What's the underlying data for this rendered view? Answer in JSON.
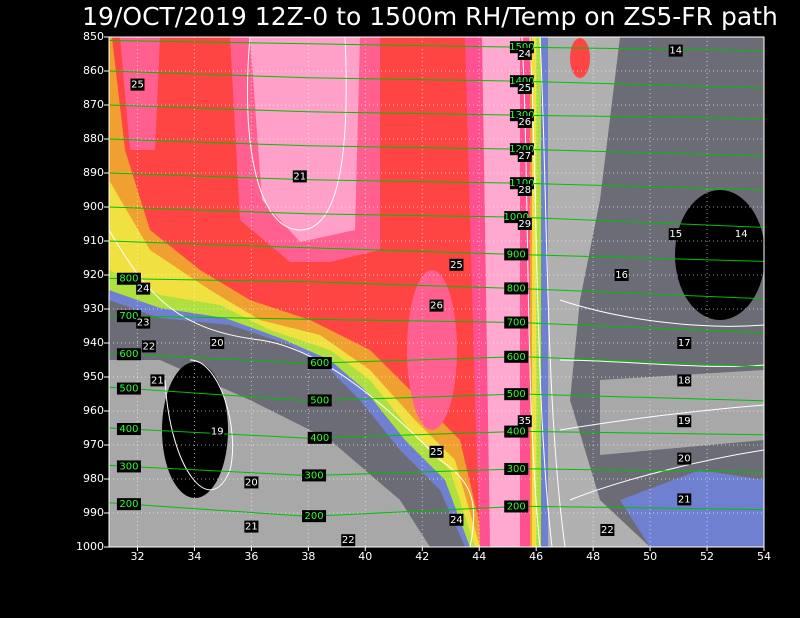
{
  "chart_data": {
    "type": "contour",
    "title": "19/OCT/2019 12Z-0 to 1500m RH/Temp on ZS5-FR path",
    "xlim": [
      31,
      54
    ],
    "ylim": [
      1000,
      850
    ],
    "xticks": [
      32,
      34,
      36,
      38,
      40,
      42,
      44,
      46,
      48,
      50,
      52,
      54
    ],
    "yticks": [
      850,
      860,
      870,
      880,
      890,
      900,
      910,
      920,
      930,
      940,
      950,
      960,
      970,
      980,
      990,
      1000
    ],
    "grid": true,
    "height_color": "#00c000",
    "height_contours": {
      "x": [
        31,
        38,
        45.5,
        54
      ],
      "levels": [
        {
          "level": 1500,
          "values": [
            851,
            852,
            853,
            854
          ],
          "label_x": [
            45.5
          ]
        },
        {
          "level": 1400,
          "values": [
            860,
            862,
            863,
            865
          ],
          "label_x": [
            45.5
          ]
        },
        {
          "level": 1300,
          "values": [
            870,
            872,
            873,
            874
          ],
          "label_x": [
            45.5
          ]
        },
        {
          "level": 1200,
          "values": [
            880,
            882,
            883,
            885
          ],
          "label_x": [
            45.5
          ]
        },
        {
          "level": 1100,
          "values": [
            890,
            892,
            893,
            895
          ],
          "label_x": [
            45.5
          ]
        },
        {
          "level": 1000,
          "values": [
            900,
            902,
            903,
            906
          ],
          "label_x": [
            45.3
          ]
        },
        {
          "level": 900,
          "values": [
            910,
            912,
            914,
            916
          ],
          "label_x": [
            45.3
          ]
        },
        {
          "level": 800,
          "values": [
            921,
            922,
            924,
            927
          ],
          "label_x": [
            31.7,
            45.3
          ]
        },
        {
          "level": 700,
          "values": [
            932,
            933,
            934,
            937
          ],
          "label_x": [
            31.7,
            45.3
          ]
        },
        {
          "level": 600,
          "values": [
            943,
            946,
            944,
            947
          ],
          "label_x": [
            31.7,
            38.4,
            45.3
          ]
        },
        {
          "level": 500,
          "values": [
            953,
            957,
            955,
            957
          ],
          "label_x": [
            31.7,
            38.4,
            45.3
          ]
        },
        {
          "level": 400,
          "values": [
            965,
            968,
            966,
            967
          ],
          "label_x": [
            31.7,
            38.4,
            45.3
          ]
        },
        {
          "level": 300,
          "values": [
            976,
            979,
            977,
            978
          ],
          "label_x": [
            31.7,
            38.2,
            45.3
          ]
        },
        {
          "level": 200,
          "values": [
            987,
            991,
            988,
            989
          ],
          "label_x": [
            31.7,
            38.2,
            45.3
          ]
        }
      ]
    },
    "temp_labels": [
      {
        "value": 25,
        "x": 32.0,
        "y": 864
      },
      {
        "value": 21,
        "x": 37.7,
        "y": 891
      },
      {
        "value": 14,
        "x": 50.9,
        "y": 854
      },
      {
        "value": 15,
        "x": 50.9,
        "y": 908
      },
      {
        "value": 14,
        "x": 53.2,
        "y": 908
      },
      {
        "value": 16,
        "x": 49.0,
        "y": 920
      },
      {
        "value": 25,
        "x": 43.2,
        "y": 917
      },
      {
        "value": 26,
        "x": 42.5,
        "y": 929
      },
      {
        "value": 24,
        "x": 32.2,
        "y": 924
      },
      {
        "value": 23,
        "x": 32.2,
        "y": 934
      },
      {
        "value": 22,
        "x": 32.4,
        "y": 941
      },
      {
        "value": 20,
        "x": 34.8,
        "y": 940
      },
      {
        "value": 21,
        "x": 32.7,
        "y": 951
      },
      {
        "value": 19,
        "x": 34.8,
        "y": 966
      },
      {
        "value": 20,
        "x": 36.0,
        "y": 981
      },
      {
        "value": 21,
        "x": 36.0,
        "y": 994
      },
      {
        "value": 22,
        "x": 39.4,
        "y": 998
      },
      {
        "value": 24,
        "x": 43.2,
        "y": 992
      },
      {
        "value": 25,
        "x": 42.5,
        "y": 972
      },
      {
        "value": 17,
        "x": 51.2,
        "y": 940
      },
      {
        "value": 18,
        "x": 51.2,
        "y": 951
      },
      {
        "value": 19,
        "x": 51.2,
        "y": 963
      },
      {
        "value": 20,
        "x": 51.2,
        "y": 974
      },
      {
        "value": 21,
        "x": 51.2,
        "y": 986
      },
      {
        "value": 22,
        "x": 48.5,
        "y": 995
      },
      {
        "value": 24,
        "x": 45.6,
        "y": 855
      },
      {
        "value": 25,
        "x": 45.6,
        "y": 865
      },
      {
        "value": 26,
        "x": 45.6,
        "y": 875
      },
      {
        "value": 27,
        "x": 45.6,
        "y": 885
      },
      {
        "value": 28,
        "x": 45.6,
        "y": 895
      },
      {
        "value": 29,
        "x": 45.6,
        "y": 905
      },
      {
        "value": 35,
        "x": 45.6,
        "y": 963
      }
    ]
  }
}
